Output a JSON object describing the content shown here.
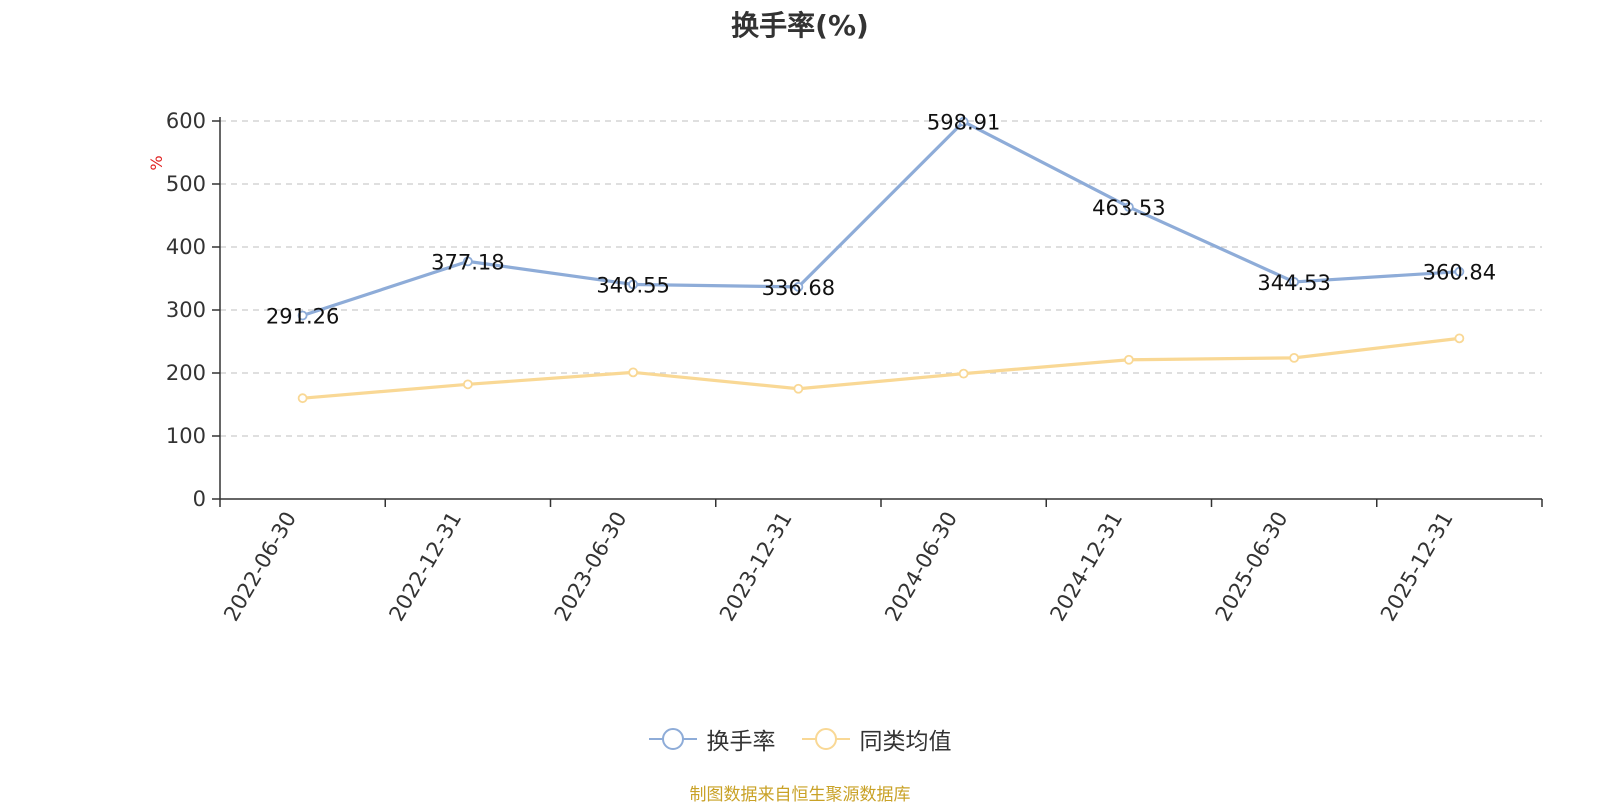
{
  "title": "换手率(%)",
  "source": "制图数据来自恒生聚源数据库",
  "chart_data": {
    "type": "line",
    "categories": [
      "2022-06-30",
      "2022-12-31",
      "2023-06-30",
      "2023-12-31",
      "2024-06-30",
      "2024-12-31",
      "2025-06-30",
      "2025-12-31"
    ],
    "ylabel": "%",
    "ylim": [
      0,
      600
    ],
    "yticks": [
      0,
      100,
      200,
      300,
      400,
      500,
      600
    ],
    "grid": true,
    "legend_position": "bottom",
    "series": [
      {
        "name": "换手率",
        "color": "#8eacd8",
        "values": [
          291.26,
          377.18,
          340.55,
          336.68,
          598.91,
          463.53,
          344.53,
          360.84
        ],
        "labels": [
          "291.26",
          "377.18",
          "340.55",
          "336.68",
          "598.91",
          "463.53",
          "344.53",
          "360.84"
        ]
      },
      {
        "name": "同类均值",
        "color": "#f9d895",
        "values": [
          160,
          182,
          201,
          175,
          199,
          221,
          224,
          255
        ]
      }
    ]
  }
}
